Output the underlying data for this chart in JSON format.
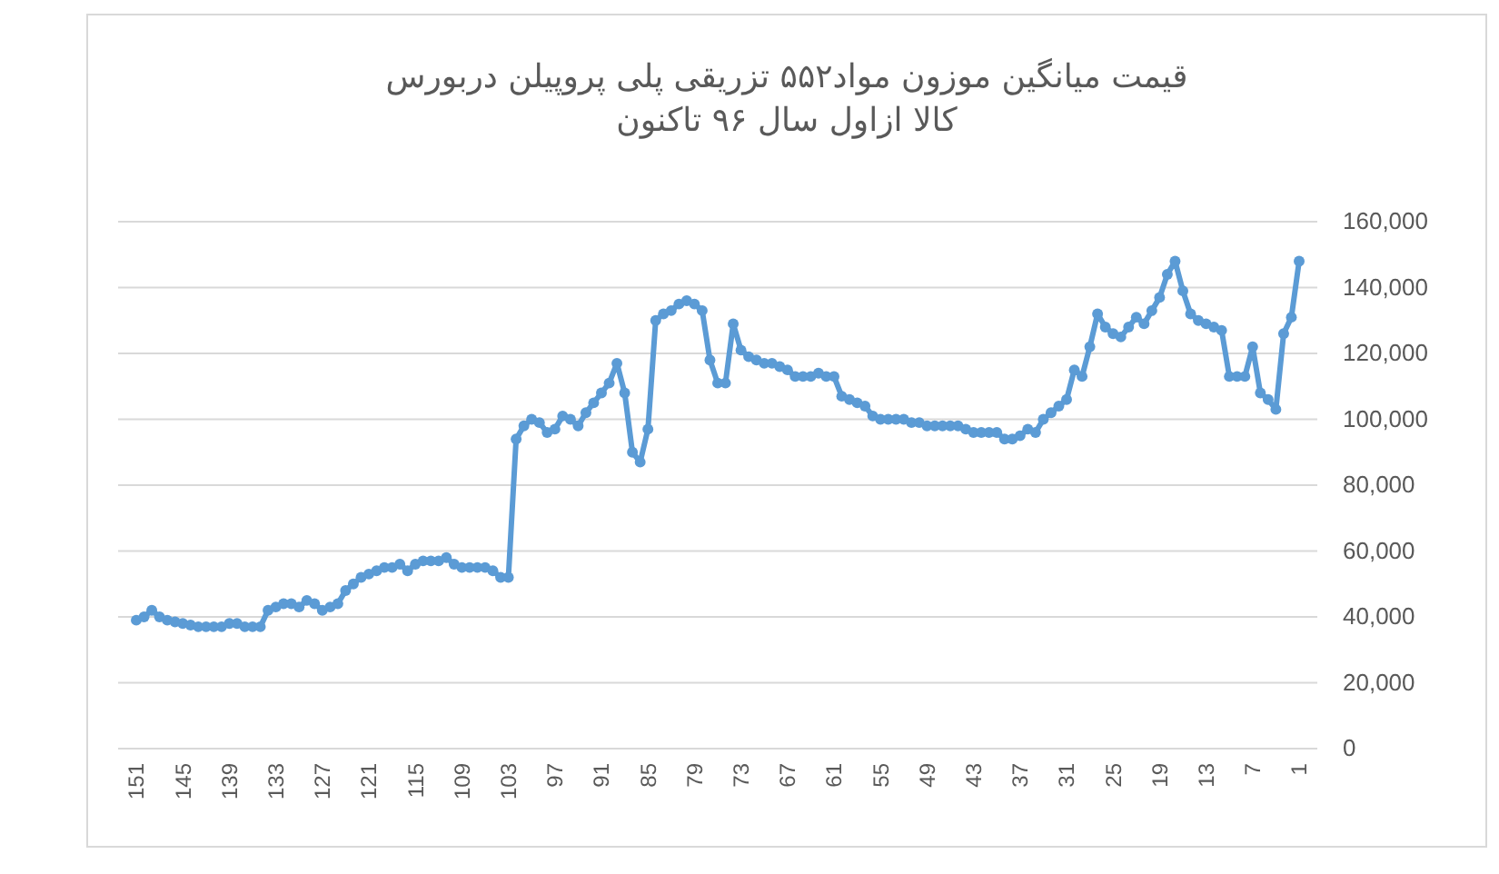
{
  "chart_data": {
    "type": "line",
    "title": "قیمت میانگین موزون مواد۵۵۲ تزریقی پلی پروپیلن  دربورس\nکالا  ازاول سال ۹۶ تاکنون",
    "categories": [
      "151",
      null,
      null,
      null,
      null,
      null,
      "145",
      null,
      null,
      null,
      null,
      null,
      "139",
      null,
      null,
      null,
      null,
      null,
      "133",
      null,
      null,
      null,
      null,
      null,
      "127",
      null,
      null,
      null,
      null,
      null,
      "121",
      null,
      null,
      null,
      null,
      null,
      "115",
      null,
      null,
      null,
      null,
      null,
      "109",
      null,
      null,
      null,
      null,
      null,
      "103",
      null,
      null,
      null,
      null,
      null,
      "97",
      null,
      null,
      null,
      null,
      null,
      "91",
      null,
      null,
      null,
      null,
      null,
      "85",
      null,
      null,
      null,
      null,
      null,
      "79",
      null,
      null,
      null,
      null,
      null,
      "73",
      null,
      null,
      null,
      null,
      null,
      "67",
      null,
      null,
      null,
      null,
      null,
      "61",
      null,
      null,
      null,
      null,
      null,
      "55",
      null,
      null,
      null,
      null,
      null,
      "49",
      null,
      null,
      null,
      null,
      null,
      "43",
      null,
      null,
      null,
      null,
      null,
      "37",
      null,
      null,
      null,
      null,
      null,
      "31",
      null,
      null,
      null,
      null,
      null,
      "25",
      null,
      null,
      null,
      null,
      null,
      "19",
      null,
      null,
      null,
      null,
      null,
      "13",
      null,
      null,
      null,
      null,
      null,
      "7",
      null,
      null,
      null,
      null,
      null,
      "1"
    ],
    "series": [
      {
        "color": "#5b9bd5",
        "values": [
          39000,
          40000,
          42000,
          40000,
          39000,
          38500,
          38000,
          37500,
          37000,
          37000,
          37000,
          37000,
          38000,
          38000,
          37000,
          37000,
          37000,
          42000,
          43000,
          44000,
          44000,
          43000,
          45000,
          44000,
          42000,
          43000,
          44000,
          48000,
          50000,
          52000,
          53000,
          54000,
          55000,
          55000,
          56000,
          54000,
          56000,
          57000,
          57000,
          57000,
          58000,
          56000,
          55000,
          55000,
          55000,
          55000,
          54000,
          52000,
          52000,
          94000,
          98000,
          100000,
          99000,
          96000,
          97000,
          101000,
          100000,
          98000,
          102000,
          105000,
          108000,
          111000,
          117000,
          108000,
          90000,
          87000,
          97000,
          130000,
          132000,
          133000,
          135000,
          136000,
          135000,
          133000,
          118000,
          111000,
          111000,
          129000,
          121000,
          119000,
          118000,
          117000,
          117000,
          116000,
          115000,
          113000,
          113000,
          113000,
          114000,
          113000,
          113000,
          107000,
          106000,
          105000,
          104000,
          101000,
          100000,
          100000,
          100000,
          100000,
          99000,
          99000,
          98000,
          98000,
          98000,
          98000,
          98000,
          97000,
          96000,
          96000,
          96000,
          96000,
          94000,
          94000,
          95000,
          97000,
          96000,
          100000,
          102000,
          104000,
          106000,
          115000,
          113000,
          122000,
          132000,
          128000,
          126000,
          125000,
          128000,
          131000,
          129000,
          133000,
          137000,
          144000,
          148000,
          139000,
          132000,
          130000,
          129000,
          128000,
          127000,
          113000,
          113000,
          113000,
          122000,
          108000,
          106000,
          103000,
          126000,
          131000,
          148000
        ]
      }
    ],
    "ylim": [
      0,
      160000
    ],
    "yticks": [
      {
        "value": 0,
        "label": "0"
      },
      {
        "value": 20000,
        "label": "20,000"
      },
      {
        "value": 40000,
        "label": "40,000"
      },
      {
        "value": 60000,
        "label": "60,000"
      },
      {
        "value": 80000,
        "label": "80,000"
      },
      {
        "value": 100000,
        "label": "100,000"
      },
      {
        "value": 120000,
        "label": "120,000"
      },
      {
        "value": 140000,
        "label": "140,000"
      },
      {
        "value": 160000,
        "label": "160,000"
      }
    ],
    "grid": "y",
    "marker": "circle",
    "line_style": "solid"
  }
}
